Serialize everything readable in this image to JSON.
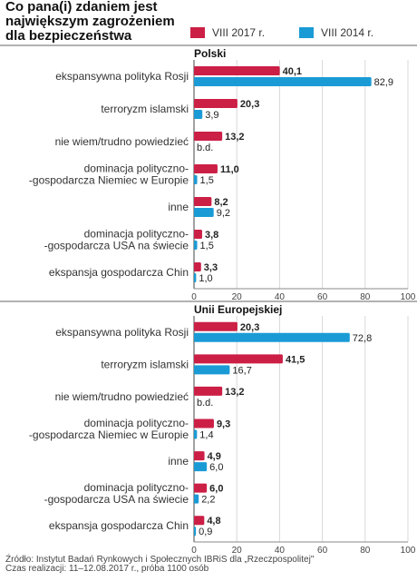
{
  "title": "Co pana(i) zdaniem jest największym zagrożeniem dla bezpieczeństwa",
  "legend": [
    {
      "label": "VIII 2017 r.",
      "color": "#cc1f46"
    },
    {
      "label": "VIII 2014 r.",
      "color": "#1a9bd6"
    }
  ],
  "chart_data": [
    {
      "type": "bar",
      "orientation": "horizontal",
      "title": "Polski",
      "categories": [
        [
          "ekspansywna polityka Rosji"
        ],
        [
          "terroryzm islamski"
        ],
        [
          "nie wiem/trudno powiedzieć"
        ],
        [
          "dominacja polityczno-",
          "-gospodarcza Niemiec w Europie"
        ],
        [
          "inne"
        ],
        [
          "dominacja polityczno-",
          "-gospodarcza USA na świecie"
        ],
        [
          "ekspansja gospodarcza Chin"
        ]
      ],
      "series": [
        {
          "name": "VIII 2017 r.",
          "values": [
            40.1,
            20.3,
            13.2,
            11.0,
            8.2,
            3.8,
            3.3
          ],
          "labels": [
            "40,1",
            "20,3",
            "13,2",
            "11,0",
            "8,2",
            "3,8",
            "3,3"
          ]
        },
        {
          "name": "VIII 2014 r.",
          "values": [
            82.9,
            3.9,
            null,
            1.5,
            9.2,
            1.5,
            1.0
          ],
          "labels": [
            "82,9",
            "3,9",
            "b.d.",
            "1,5",
            "9,2",
            "1,5",
            "1,0"
          ]
        }
      ],
      "xlim": [
        0,
        100
      ],
      "xticks": [
        "0",
        "20",
        "40",
        "60",
        "80",
        "100"
      ],
      "grid": true
    },
    {
      "type": "bar",
      "orientation": "horizontal",
      "title": "Unii Europejskiej",
      "categories": [
        [
          "ekspansywna polityka Rosji"
        ],
        [
          "terroryzm islamski"
        ],
        [
          "nie wiem/trudno powiedzieć"
        ],
        [
          "dominacja polityczno-",
          "-gospodarcza Niemiec w Europie"
        ],
        [
          "inne"
        ],
        [
          "dominacja polityczno-",
          "-gospodarcza USA na świecie"
        ],
        [
          "ekspansja gospodarcza Chin"
        ]
      ],
      "series": [
        {
          "name": "VIII 2017 r.",
          "values": [
            20.3,
            41.5,
            13.2,
            9.3,
            4.9,
            6.0,
            4.8
          ],
          "labels": [
            "20,3",
            "41,5",
            "13,2",
            "9,3",
            "4,9",
            "6,0",
            "4,8"
          ]
        },
        {
          "name": "VIII 2014 r.",
          "values": [
            72.8,
            16.7,
            null,
            1.4,
            6.0,
            2.2,
            0.9
          ],
          "labels": [
            "72,8",
            "16,7",
            "b.d.",
            "1,4",
            "6,0",
            "2,2",
            "0,9"
          ]
        }
      ],
      "xlim": [
        0,
        100
      ],
      "xticks": [
        "0",
        "20",
        "40",
        "60",
        "80",
        "100"
      ],
      "grid": true
    }
  ],
  "footer": {
    "source": "Źródło: Instytut Badań Rynkowych i Społecznych IBRiS dla „Rzeczpospolitej\"",
    "period": "Czas realizacji: 11–12.08.2017 r., próba 1100 osób"
  }
}
